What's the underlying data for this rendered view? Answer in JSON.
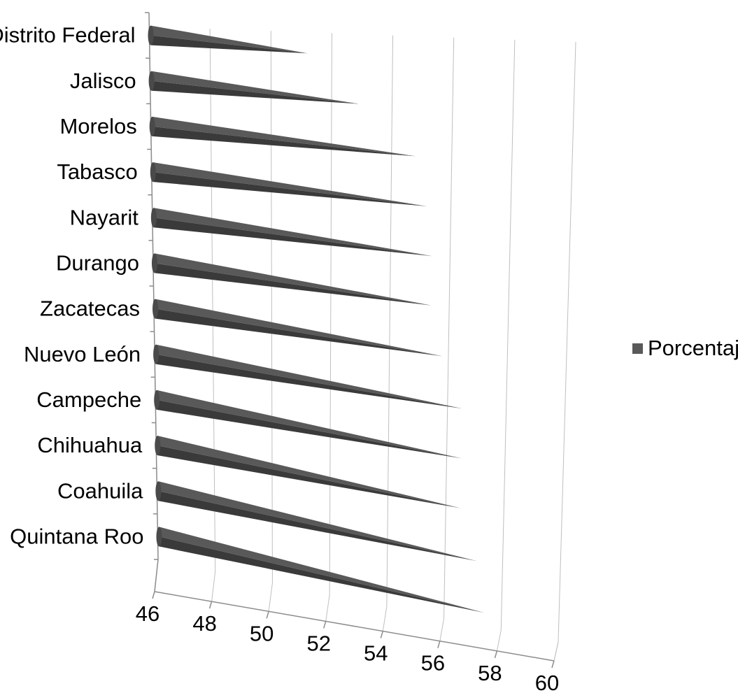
{
  "chart_data": {
    "type": "bar",
    "orientation": "horizontal",
    "style": "3d-cone",
    "categories": [
      "Distrito Federal",
      "Jalisco",
      "Morelos",
      "Tabasco",
      "Nayarit",
      "Durango",
      "Zacatecas",
      "Nuevo León",
      "Campeche",
      "Chihuahua",
      "Coahuila",
      "Quintana Roo"
    ],
    "series": [
      {
        "name": "Porcentaje",
        "values": [
          51.2,
          52.9,
          54.8,
          55.2,
          55.4,
          55.4,
          55.8,
          56.5,
          56.5,
          56.5,
          57.1,
          57.4
        ],
        "color": "#595959"
      }
    ],
    "xlim": [
      46,
      60
    ],
    "ticks": [
      "46",
      "48",
      "50",
      "52",
      "54",
      "56",
      "58",
      "60"
    ],
    "title": "",
    "xlabel": "",
    "ylabel": "",
    "grid": true,
    "legend_position": "right"
  }
}
